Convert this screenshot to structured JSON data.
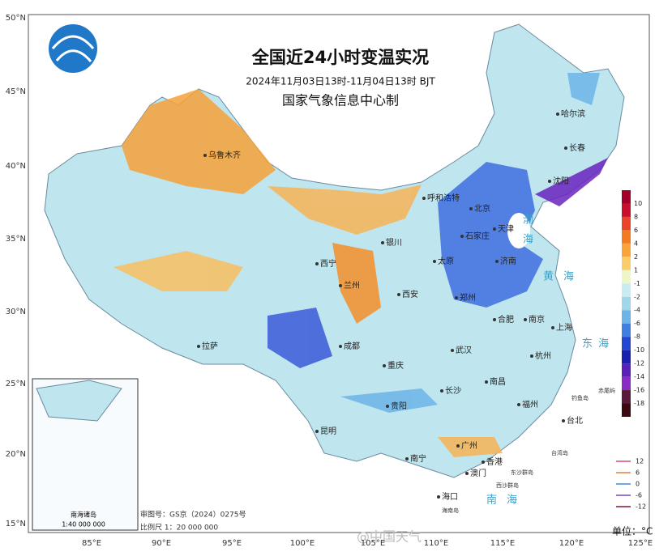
{
  "header": {
    "title": "全国近24小时变温实况",
    "subtitle": "2024年11月03日13时-11月04日13时 BJT",
    "producer": "国家气象信息中心制"
  },
  "lat_labels": [
    "50°N",
    "45°N",
    "40°N",
    "35°N",
    "30°N",
    "25°N",
    "20°N",
    "15°N"
  ],
  "lon_labels": [
    "85°E",
    "90°E",
    "95°E",
    "100°E",
    "105°E",
    "110°E",
    "115°E",
    "120°E",
    "125°E"
  ],
  "cities": [
    "乌鲁木齐",
    "哈尔滨",
    "长春",
    "沈阳",
    "呼和浩特",
    "北京",
    "天津",
    "石家庄",
    "济南",
    "太原",
    "银川",
    "西宁",
    "兰州",
    "西安",
    "郑州",
    "合肥",
    "南京",
    "上海",
    "杭州",
    "武汉",
    "拉萨",
    "成都",
    "重庆",
    "长沙",
    "南昌",
    "福州",
    "贵阳",
    "昆明",
    "南宁",
    "广州",
    "香港",
    "澳门",
    "台北",
    "海口"
  ],
  "islands": [
    "钓鱼岛",
    "赤尾屿",
    "台湾岛",
    "东沙群岛",
    "西沙群岛",
    "海南岛"
  ],
  "seas": [
    "渤",
    "海",
    "黄",
    "海",
    "东",
    "海",
    "南",
    "海"
  ],
  "colorbar": {
    "labels": [
      10,
      8,
      6,
      4,
      2,
      1,
      -1,
      -2,
      -4,
      -6,
      -8,
      -10,
      -12,
      -14,
      -16,
      -18
    ],
    "colors": [
      "#a0002a",
      "#c8102e",
      "#e8452c",
      "#f47a22",
      "#f8a43a",
      "#f8cd6a",
      "#eef6c8",
      "#c8ecf0",
      "#9fd6ec",
      "#6cb4e8",
      "#3f7fe0",
      "#2246d0",
      "#1b1fb0",
      "#5a1fb8",
      "#8a2cc4",
      "#5a1a3a",
      "#3a0a10"
    ]
  },
  "contour_legend": [
    {
      "value": 12,
      "color": "#e07a8a"
    },
    {
      "value": 6,
      "color": "#e8a070"
    },
    {
      "value": 0,
      "color": "#70a8e0"
    },
    {
      "value": -6,
      "color": "#9a70d0"
    },
    {
      "value": -12,
      "color": "#a05070"
    }
  ],
  "inset": {
    "title": "南海诸岛",
    "scale": "1:40 000 000"
  },
  "footer": {
    "approval": "审图号：GS京（2024）0275号",
    "scale": "比例尺 1：20 000 000",
    "unit": "单位：°C",
    "watermark": "@中国天气"
  }
}
